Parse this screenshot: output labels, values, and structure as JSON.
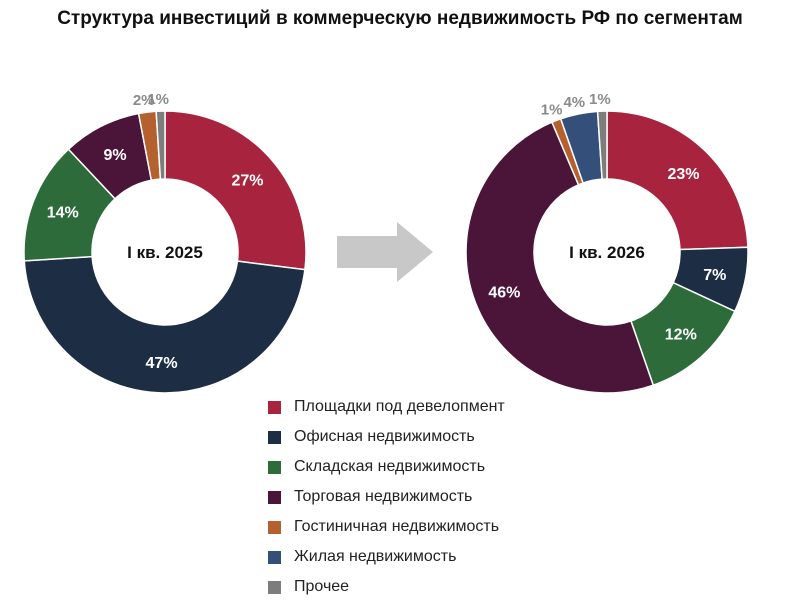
{
  "title": "Структура инвестиций в коммерческую недвижимость РФ по сегментам",
  "legend": [
    {
      "label": "Площадки под девелопмент",
      "color": "#A8243E"
    },
    {
      "label": "Офисная недвижимость",
      "color": "#1D2D44"
    },
    {
      "label": "Складская недвижимость",
      "color": "#2E6B3A"
    },
    {
      "label": "Торговая недвижимость",
      "color": "#4A1538"
    },
    {
      "label": "Гостиничная недвижимость",
      "color": "#B5602F"
    },
    {
      "label": "Жилая недвижимость",
      "color": "#34507A"
    },
    {
      "label": "Прочее",
      "color": "#7D7D7D"
    }
  ],
  "chart_data": [
    {
      "type": "pie",
      "center_label": "I кв. 2025",
      "categories": [
        "Площадки под девелопмент",
        "Офисная недвижимость",
        "Складская недвижимость",
        "Торговая недвижимость",
        "Гостиничная недвижимость",
        "Жилая недвижимость",
        "Прочее"
      ],
      "values": [
        27,
        47,
        14,
        9,
        2,
        0,
        1
      ],
      "labels": [
        "27%",
        "47%",
        "14%",
        "9%",
        "2%",
        "",
        "1%"
      ]
    },
    {
      "type": "pie",
      "center_label": "I кв. 2026",
      "categories": [
        "Площадки под девелопмент",
        "Офисная недвижимость",
        "Складская недвижимость",
        "Торговая недвижимость",
        "Гостиничная недвижимость",
        "Жилая недвижимость",
        "Прочее"
      ],
      "values": [
        23,
        7,
        12,
        46,
        1,
        4,
        1
      ],
      "labels": [
        "23%",
        "7%",
        "12%",
        "46%",
        "1%",
        "4%",
        "1%"
      ]
    }
  ]
}
